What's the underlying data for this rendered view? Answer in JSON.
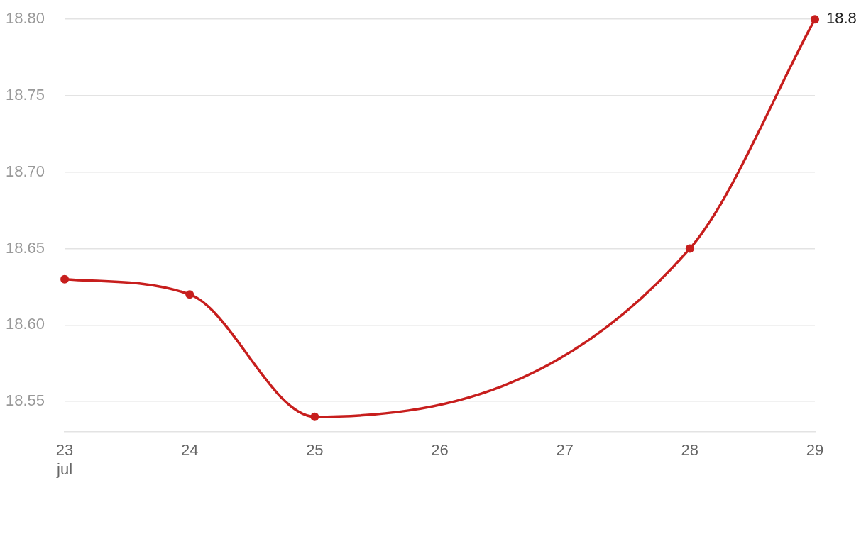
{
  "chart_data": {
    "type": "line",
    "x": [
      "--07-23",
      "--07-24",
      "--07-25",
      "--07-28",
      "--07-29"
    ],
    "series": [
      {
        "color": "#c71e1d",
        "values": [
          18.63,
          18.62,
          18.54,
          18.65,
          18.8
        ],
        "value_labels": [
          null,
          null,
          null,
          null,
          "18.8"
        ]
      }
    ],
    "xlim": [
      "--07-23",
      "--07-29"
    ],
    "xticks": [
      {
        "value": "--07-23",
        "label": "23\njul"
      },
      {
        "value": "--07-24",
        "label": "24"
      },
      {
        "value": "--07-25",
        "label": "25"
      },
      {
        "value": "--07-26",
        "label": "26"
      },
      {
        "value": "--07-27",
        "label": "27"
      },
      {
        "value": "--07-28",
        "label": "28"
      },
      {
        "value": "--07-29",
        "label": "29"
      }
    ],
    "ylim": [
      18.53,
      18.8
    ],
    "yticks": [
      {
        "value": 18.55,
        "label": "18.55"
      },
      {
        "value": 18.6,
        "label": "18.60"
      },
      {
        "value": 18.65,
        "label": "18.65"
      },
      {
        "value": 18.7,
        "label": "18.70"
      },
      {
        "value": 18.75,
        "label": "18.75"
      },
      {
        "value": 18.8,
        "label": "18.80"
      }
    ],
    "grid": "y",
    "legend": false,
    "marker": "circle",
    "line_style": "solid"
  }
}
